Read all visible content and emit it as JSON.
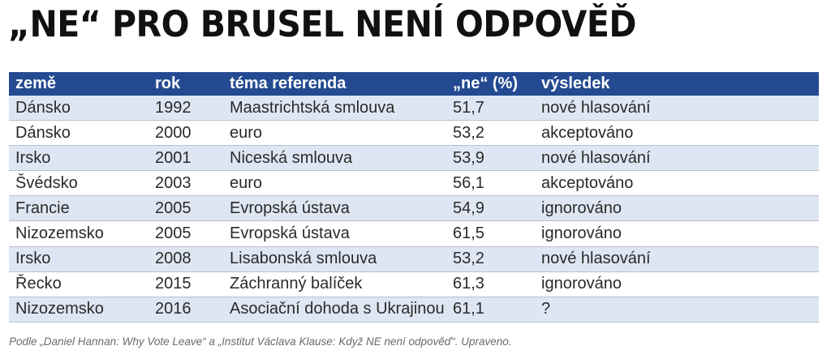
{
  "title": "„NE“ PRO BRUSEL NENÍ ODPOVĚĎ",
  "table": {
    "headers": [
      "země",
      "rok",
      "téma referenda",
      "„ne“ (%)",
      "výsledek"
    ],
    "rows": [
      [
        "Dánsko",
        "1992",
        "Maastrichtská smlouva",
        "51,7",
        "nové hlasování"
      ],
      [
        "Dánsko",
        "2000",
        "euro",
        "53,2",
        "akceptováno"
      ],
      [
        "Irsko",
        "2001",
        "Niceská smlouva",
        "53,9",
        "nové hlasování"
      ],
      [
        "Švédsko",
        "2003",
        "euro",
        "56,1",
        "akceptováno"
      ],
      [
        "Francie",
        "2005",
        "Evropská ústava",
        "54,9",
        "ignorováno"
      ],
      [
        "Nizozemsko",
        "2005",
        "Evropská ústava",
        "61,5",
        "ignorováno"
      ],
      [
        "Irsko",
        "2008",
        "Lisabonská smlouva",
        "53,2",
        "nové hlasování"
      ],
      [
        "Řecko",
        "2015",
        "Záchranný balíček",
        "61,3",
        "ignorováno"
      ],
      [
        "Nizozemsko",
        "2016",
        "Asociační dohoda s Ukrajinou",
        "61,1",
        "?"
      ]
    ]
  },
  "source": "Podle „Daniel Hannan: Why Vote Leave“ a „Institut Václava Klause: Když NE není odpověď“. Upraveno.",
  "colors": {
    "header_bg": "#244a92",
    "row_stripe": "#dfe6f3"
  }
}
